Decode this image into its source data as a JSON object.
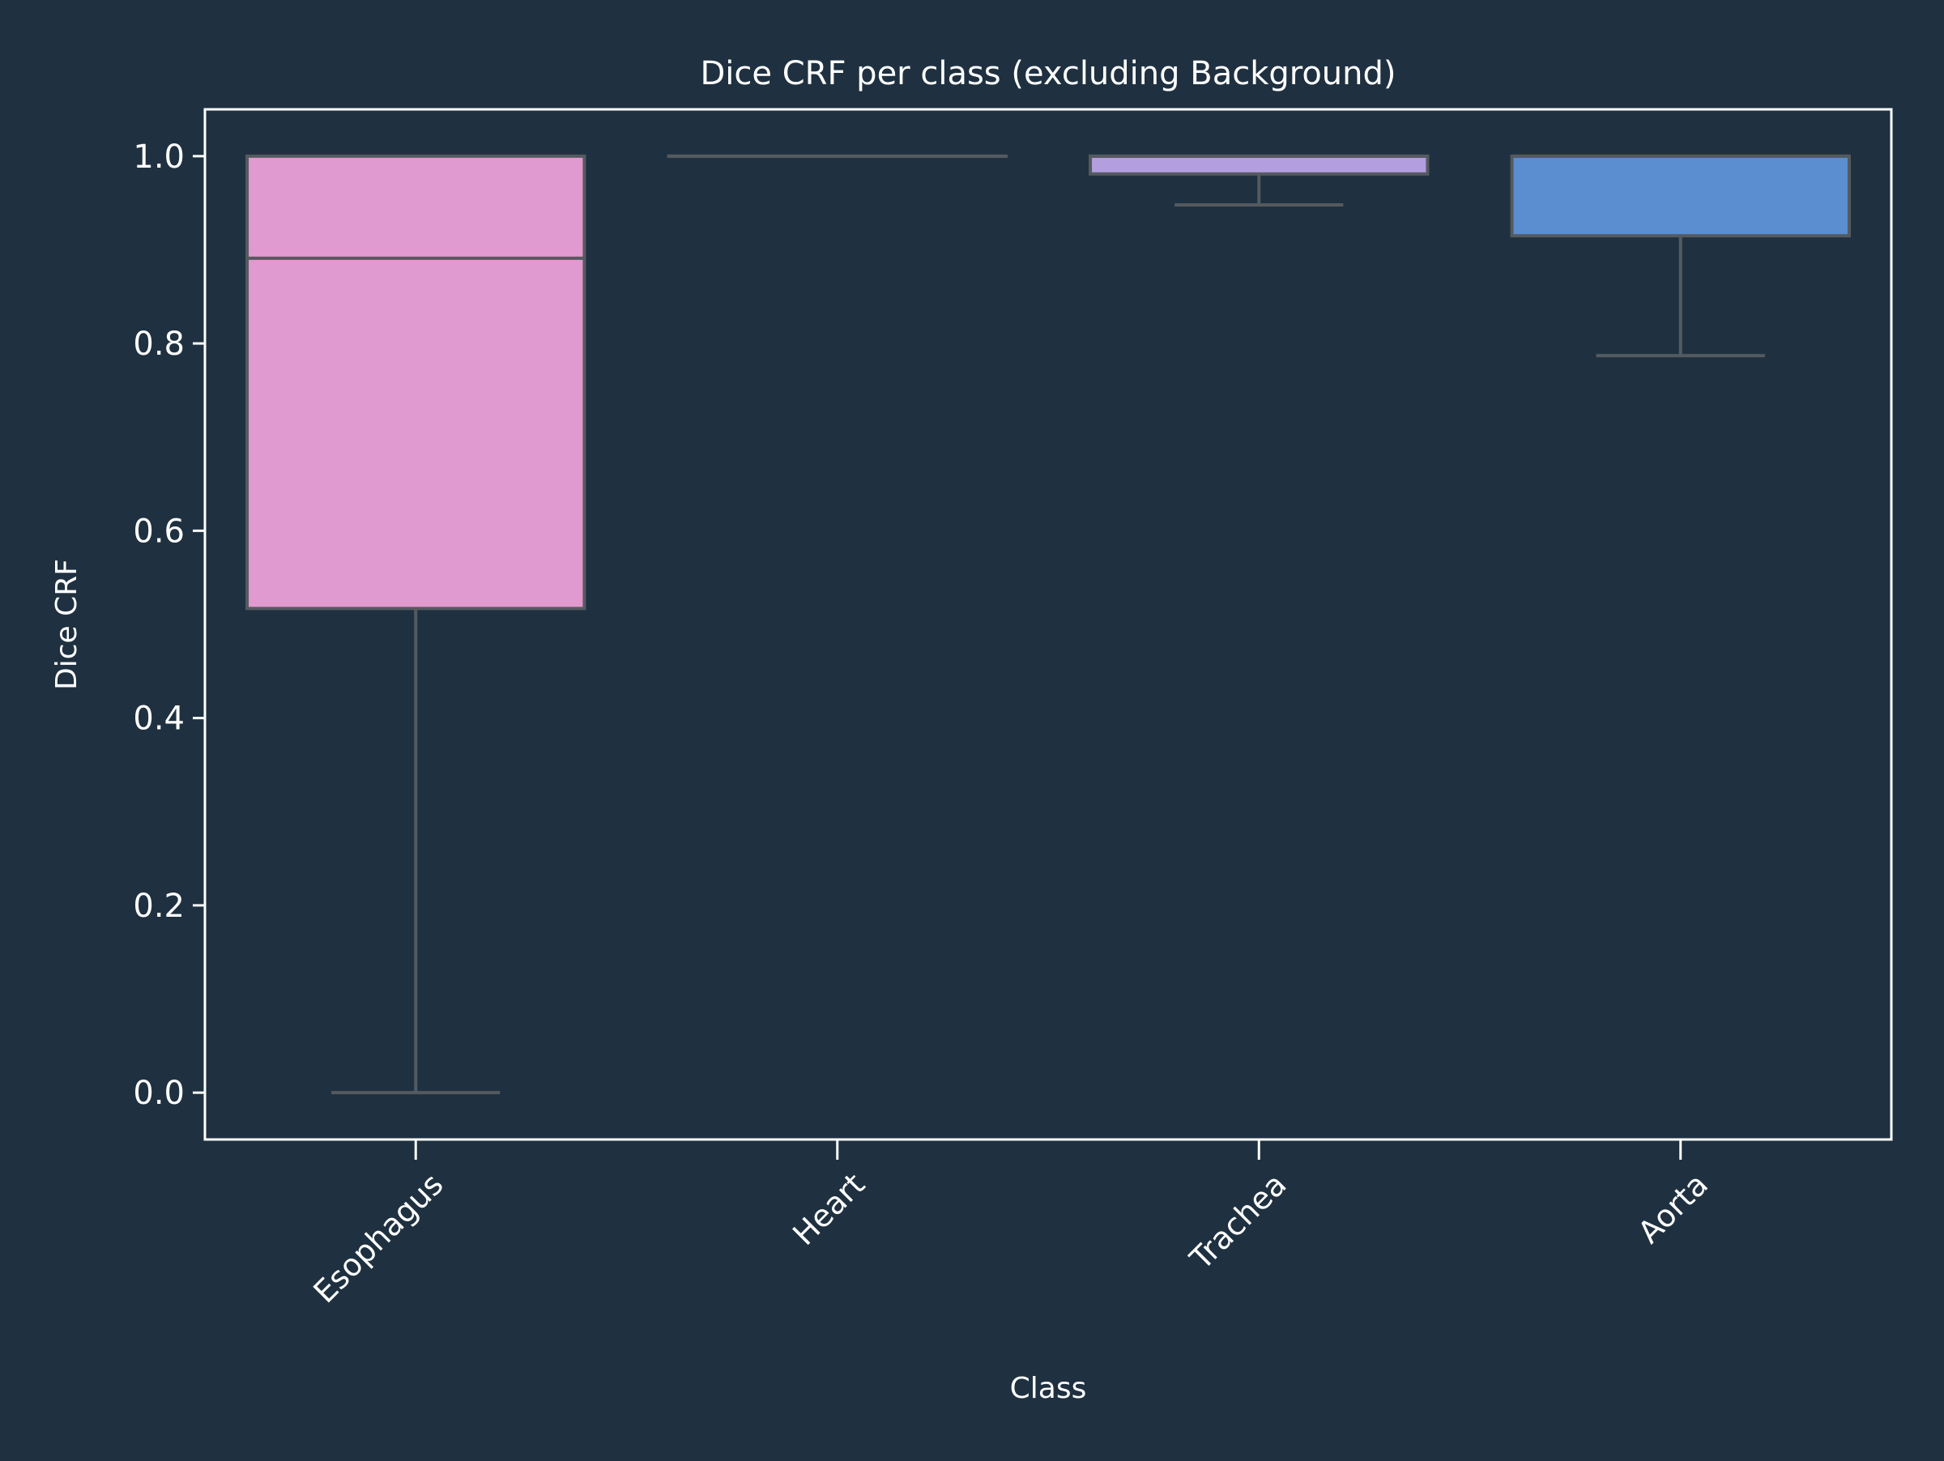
{
  "colors": {
    "background": "#1f3140",
    "axis": "#ffffff",
    "box_edge": "#555a60",
    "text": "#ffffff"
  },
  "chart_data": {
    "type": "boxplot",
    "title": "Dice CRF per class (excluding Background)",
    "xlabel": "Class",
    "ylabel": "Dice CRF",
    "ylim": [
      -0.05,
      1.05
    ],
    "yticks": [
      0.0,
      0.2,
      0.4,
      0.6,
      0.8,
      1.0
    ],
    "ytick_labels": [
      "0.0",
      "0.2",
      "0.4",
      "0.6",
      "0.8",
      "1.0"
    ],
    "grid": false,
    "categories": [
      "Esophagus",
      "Heart",
      "Trachea",
      "Aorta"
    ],
    "boxes": [
      {
        "name": "Esophagus",
        "whisker_low": 0.0,
        "q1": 0.517,
        "median": 0.891,
        "q3": 1.0,
        "whisker_high": 1.0,
        "color": "#e09acf"
      },
      {
        "name": "Heart",
        "whisker_low": 1.0,
        "q1": 1.0,
        "median": 1.0,
        "q3": 1.0,
        "whisker_high": 1.0,
        "color": "#e09acf"
      },
      {
        "name": "Trachea",
        "whisker_low": 0.948,
        "q1": 0.981,
        "median": 1.0,
        "q3": 1.0,
        "whisker_high": 1.0,
        "color": "#b39ee0"
      },
      {
        "name": "Aorta",
        "whisker_low": 0.787,
        "q1": 0.915,
        "median": 1.0,
        "q3": 1.0,
        "whisker_high": 1.0,
        "color": "#5b8ed0"
      }
    ]
  }
}
